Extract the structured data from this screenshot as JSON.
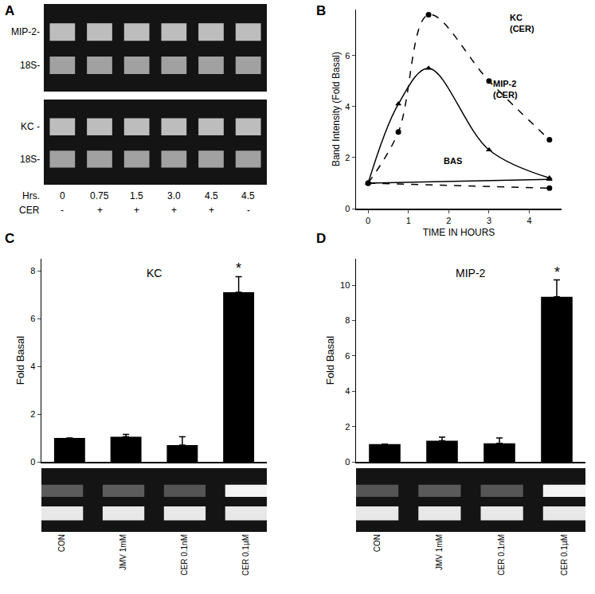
{
  "chart_data": [
    {
      "panel": "B",
      "type": "line",
      "x_label": "TIME IN HOURS",
      "y_label": "Band Intensity (Fold Basal)",
      "xlim": [
        -0.3,
        4.8
      ],
      "xticks": [
        0,
        1,
        2,
        3,
        4
      ],
      "ylim": [
        0,
        7.8
      ],
      "yticks": [
        0,
        2,
        4,
        6
      ],
      "series": [
        {
          "name": "KC (CER)",
          "x": [
            0,
            0.75,
            1.5,
            3,
            4.5
          ],
          "values": [
            1,
            3,
            7.6,
            5,
            2.7
          ],
          "color": "#000000",
          "marker": "circle",
          "line_style": "dash"
        },
        {
          "name": "MIP-2 (CER)",
          "x": [
            0,
            0.75,
            1.5,
            3,
            4.5
          ],
          "values": [
            1,
            4.1,
            5.5,
            2.3,
            1.2
          ],
          "color": "#000000",
          "marker": "triangle",
          "line_style": "solid"
        },
        {
          "name": "BAS",
          "x": [
            0,
            4.5
          ],
          "values": [
            1,
            1.15
          ],
          "color": "#000000",
          "marker": "triangle",
          "line_style": "solid"
        },
        {
          "name": "BAS",
          "x": [
            0,
            4.5
          ],
          "values": [
            1,
            0.8
          ],
          "color": "#000000",
          "marker": "circle",
          "line_style": "dash"
        }
      ]
    },
    {
      "panel": "C",
      "type": "bar",
      "title": "KC",
      "y_label": "Fold Basal",
      "categories": [
        "CON",
        "JMV 1mM",
        "CER 0.1nM",
        "CER 0.1µM"
      ],
      "values": [
        1,
        1.05,
        0.7,
        7.1
      ],
      "errors": [
        0,
        0.1,
        0.35,
        0.65
      ],
      "ylim": [
        0,
        8.5
      ],
      "yticks": [
        0,
        2,
        4,
        6,
        8
      ],
      "color": "#000000",
      "annotations": [
        {
          "text": "*",
          "category": "CER 0.1µM"
        }
      ]
    },
    {
      "panel": "D",
      "type": "bar",
      "title": "MIP-2",
      "y_label": "Fold Basal",
      "categories": [
        "CON",
        "JMV 1mM",
        "CER 0.1nM",
        "CER 0.1µM"
      ],
      "values": [
        1,
        1.2,
        1.05,
        9.35
      ],
      "errors": [
        0,
        0.2,
        0.3,
        0.95
      ],
      "ylim": [
        0,
        11.5
      ],
      "yticks": [
        0,
        2,
        4,
        6,
        8,
        10
      ],
      "color": "#000000",
      "annotations": [
        {
          "text": "*",
          "category": "CER 0.1µM"
        }
      ]
    }
  ],
  "gel": {
    "panel": "A",
    "top_labels": [
      "MIP-2-",
      "18S-"
    ],
    "bottom_labels": [
      "KC -",
      "18S-"
    ],
    "rows": [
      {
        "label": "Hrs.",
        "values": [
          "0",
          "0.75",
          "1.5",
          "3.0",
          "4.5",
          "4.5"
        ]
      },
      {
        "label": "CER",
        "values": [
          "-",
          "+",
          "+",
          "+",
          "+",
          "-"
        ]
      }
    ]
  }
}
